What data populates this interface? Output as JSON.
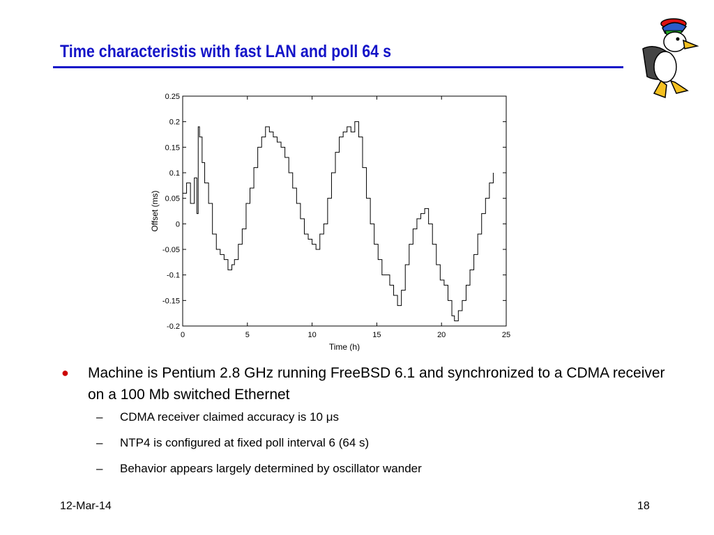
{
  "slide": {
    "title": "Time characteristis with fast LAN and poll 64 s",
    "date": "12-Mar-14",
    "page_number": "18",
    "mascot_icon": "duck-mascot-icon"
  },
  "colors": {
    "title": "#1414c8",
    "bullet": "#cc0000",
    "trace": "#000000"
  },
  "bullets": {
    "main": "Machine is Pentium 2.8 GHz running FreeBSD 6.1 and synchronized to a CDMA receiver on a 100 Mb switched Ethernet",
    "sub1": "CDMA receiver claimed accuracy is 10 μs",
    "sub2": "NTP4 is configured at fixed poll interval 6 (64 s)",
    "sub3": "Behavior appears largely determined by oscillator wander",
    "bullet_glyph": "●",
    "dash_glyph": "–"
  },
  "chart_data": {
    "type": "line",
    "xlabel": "Time (h)",
    "ylabel": "Offset (ms)",
    "xlim": [
      0,
      25
    ],
    "ylim": [
      -0.2,
      0.25
    ],
    "xticks": [
      0,
      5,
      10,
      15,
      20,
      25
    ],
    "yticks": [
      -0.2,
      -0.15,
      -0.1,
      -0.05,
      0,
      0.05,
      0.1,
      0.15,
      0.2,
      0.25
    ],
    "ytick_labels": [
      "-0.2",
      "-0.15",
      "-0.1",
      "-0.05",
      "0",
      "0.05",
      "0.1",
      "0.15",
      "0.2",
      "0.25"
    ],
    "grid": false,
    "series": [
      {
        "x": [
          0.0,
          0.3,
          0.6,
          0.9,
          1.1,
          1.2,
          1.3,
          1.5,
          1.7,
          2.0,
          2.3,
          2.6,
          2.9,
          3.2,
          3.5,
          3.8,
          4.0,
          4.3,
          4.6,
          4.9,
          5.2,
          5.5,
          5.8,
          6.1,
          6.4,
          6.7,
          7.0,
          7.3,
          7.6,
          7.9,
          8.2,
          8.5,
          8.8,
          9.1,
          9.4,
          9.7,
          10.0,
          10.3,
          10.6,
          10.9,
          11.2,
          11.5,
          11.8,
          12.1,
          12.4,
          12.7,
          13.0,
          13.3,
          13.6,
          13.9,
          14.2,
          14.5,
          14.8,
          15.1,
          15.4,
          15.7,
          16.0,
          16.3,
          16.6,
          16.9,
          17.2,
          17.5,
          17.8,
          18.1,
          18.4,
          18.7,
          19.0,
          19.3,
          19.6,
          19.9,
          20.2,
          20.5,
          20.8,
          21.0,
          21.3,
          21.6,
          21.9,
          22.2,
          22.5,
          22.8,
          23.1,
          23.4,
          23.7,
          24.0
        ],
        "y": [
          0.06,
          0.08,
          0.04,
          0.09,
          0.02,
          0.19,
          0.17,
          0.12,
          0.08,
          0.04,
          -0.02,
          -0.05,
          -0.06,
          -0.07,
          -0.09,
          -0.08,
          -0.07,
          -0.04,
          -0.01,
          0.04,
          0.07,
          0.11,
          0.15,
          0.17,
          0.19,
          0.18,
          0.17,
          0.16,
          0.15,
          0.13,
          0.1,
          0.07,
          0.04,
          0.01,
          -0.02,
          -0.03,
          -0.04,
          -0.05,
          -0.02,
          0.0,
          0.05,
          0.1,
          0.14,
          0.17,
          0.18,
          0.19,
          0.18,
          0.2,
          0.17,
          0.11,
          0.05,
          0.0,
          -0.04,
          -0.07,
          -0.1,
          -0.1,
          -0.12,
          -0.14,
          -0.16,
          -0.13,
          -0.08,
          -0.04,
          -0.01,
          0.01,
          0.02,
          0.03,
          0.0,
          -0.04,
          -0.08,
          -0.11,
          -0.12,
          -0.15,
          -0.18,
          -0.19,
          -0.17,
          -0.15,
          -0.12,
          -0.09,
          -0.06,
          -0.02,
          0.02,
          0.05,
          0.08,
          0.1
        ]
      }
    ]
  }
}
